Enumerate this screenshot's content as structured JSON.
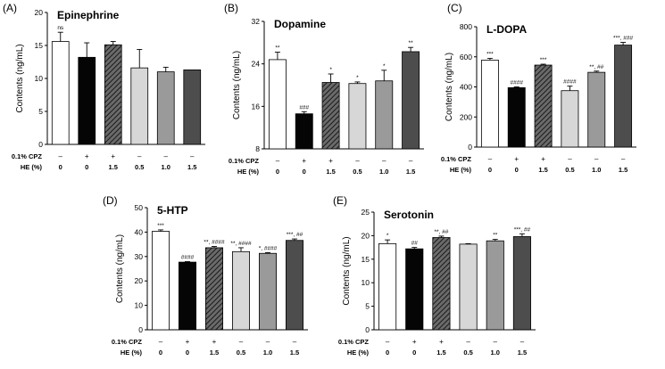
{
  "figure": {
    "treatment_labels": {
      "cpz": "0.1% CPZ",
      "he": "HE (%)"
    },
    "cpz_values": [
      "–",
      "+",
      "+",
      "–",
      "–",
      "–"
    ],
    "he_values": [
      "0",
      "0",
      "1.5",
      "0.5",
      "1.0",
      "1.5"
    ],
    "bar_styles": [
      "white",
      "black",
      "hatched",
      "lightgray",
      "gray",
      "darkgray"
    ]
  },
  "chart_data": [
    {
      "type": "bar",
      "panel": "(A)",
      "title": "Epinephrine",
      "ylabel": "Contents (ng/mL)",
      "xlabel": "",
      "ylim": [
        0,
        20
      ],
      "yticks": [
        0,
        5,
        10,
        15,
        20
      ],
      "values": [
        15.6,
        13.2,
        15.1,
        11.6,
        11.0,
        11.3
      ],
      "errors": [
        1.4,
        2.2,
        0.5,
        2.8,
        0.7,
        0
      ],
      "annotations": [
        "ns",
        "",
        "",
        "",
        "",
        ""
      ]
    },
    {
      "type": "bar",
      "panel": "(B)",
      "title": "Dopamine",
      "ylabel": "Contents (ng/mL)",
      "xlabel": "",
      "ylim": [
        8,
        32
      ],
      "yticks": [
        8,
        16,
        24,
        32
      ],
      "values": [
        24.8,
        14.6,
        20.5,
        20.3,
        20.8,
        26.3
      ],
      "errors": [
        1.4,
        0.4,
        1.6,
        0.3,
        2.0,
        0.8
      ],
      "annotations": [
        "**",
        "###",
        "*",
        "*",
        "*",
        "**"
      ]
    },
    {
      "type": "bar",
      "panel": "(C)",
      "title": "L-DOPA",
      "ylabel": "Contents (ng/mL)",
      "xlabel": "",
      "ylim": [
        0,
        800
      ],
      "yticks": [
        0,
        200,
        400,
        600,
        800
      ],
      "values": [
        578,
        395,
        545,
        375,
        497,
        678
      ],
      "errors": [
        12,
        5,
        6,
        30,
        8,
        18
      ],
      "annotations": [
        "***",
        "####",
        "***",
        "####",
        "**, ##",
        "***, ###"
      ]
    },
    {
      "type": "bar",
      "panel": "(D)",
      "title": "5-HTP",
      "ylabel": "Contents (ng/mL)",
      "xlabel": "",
      "ylim": [
        0,
        50
      ],
      "yticks": [
        0,
        10,
        20,
        30,
        40,
        50
      ],
      "values": [
        40.3,
        27.7,
        33.6,
        32.0,
        31.3,
        36.6
      ],
      "errors": [
        0.6,
        0.2,
        0.5,
        1.6,
        0.3,
        0.6
      ],
      "annotations": [
        "***",
        "####",
        "**, ####",
        "**, ####",
        "*, ####",
        "***, ##"
      ]
    },
    {
      "type": "bar",
      "panel": "(E)",
      "title": "Serotonin",
      "ylabel": "Contents (ng/mL)",
      "xlabel": "",
      "ylim": [
        0,
        25
      ],
      "yticks": [
        0,
        5,
        10,
        15,
        20,
        25
      ],
      "values": [
        18.3,
        17.2,
        19.6,
        18.2,
        18.9,
        19.8
      ],
      "errors": [
        0.8,
        0.3,
        0.3,
        0.1,
        0.3,
        0.6
      ],
      "annotations": [
        "*",
        "##",
        "**, ##",
        "",
        "**",
        "***, ##"
      ]
    }
  ]
}
